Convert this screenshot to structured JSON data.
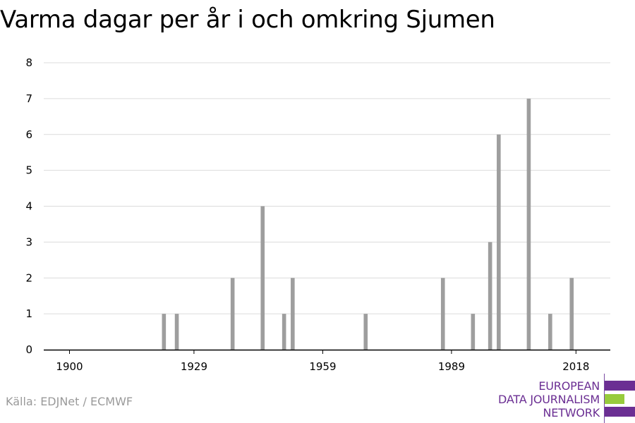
{
  "title": "Varma dagar per år i och omkring Sjumen",
  "source": "Källa: EDJNet / ECMWF",
  "logo": {
    "line1": "EUROPEAN",
    "line2": "DATA JOURNALISM",
    "line3": "NETWORK",
    "colors": {
      "purple": "#6b2f93",
      "green": "#97cb3c"
    }
  },
  "chart_data": {
    "type": "bar",
    "title": "Varma dagar per år i och omkring Sjumen",
    "xlabel": "",
    "ylabel": "",
    "xlim": [
      1894,
      2026
    ],
    "ylim": [
      0,
      8
    ],
    "xticks": [
      1900,
      1929,
      1959,
      1989,
      2018
    ],
    "yticks": [
      0,
      1,
      2,
      3,
      4,
      5,
      6,
      7,
      8
    ],
    "grid": true,
    "bar_color": "#9e9e9e",
    "x": [
      1922,
      1925,
      1938,
      1945,
      1950,
      1952,
      1969,
      1987,
      1994,
      1998,
      2000,
      2007,
      2012,
      2017
    ],
    "values": [
      1,
      1,
      2,
      4,
      1,
      2,
      1,
      2,
      1,
      3,
      6,
      7,
      1,
      2
    ]
  }
}
